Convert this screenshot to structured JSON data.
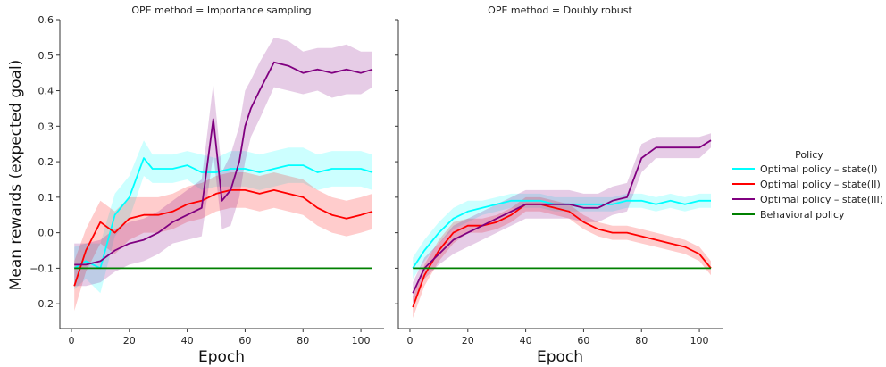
{
  "chart_data": {
    "type": "line",
    "ylabel": "Mean rewards (expected goal)",
    "xlabel": "Epoch",
    "xlim": [
      -4,
      108
    ],
    "ylim": [
      -0.27,
      0.6
    ],
    "xticks": [
      0,
      20,
      40,
      60,
      80,
      100
    ],
    "yticks": [
      -0.2,
      -0.1,
      0.0,
      0.1,
      0.2,
      0.3,
      0.4,
      0.5,
      0.6
    ],
    "ytick_labels": [
      "−0.2",
      "−0.1",
      "0.0",
      "0.1",
      "0.2",
      "0.3",
      "0.4",
      "0.5",
      "0.6"
    ],
    "legend": {
      "title": "Policy",
      "placement": "right",
      "entries": [
        "Optimal policy – state(I)",
        "Optimal policy – state(II)",
        "Optimal policy – state(III)",
        "Behavioral policy"
      ]
    },
    "colors": [
      "#00ffff",
      "#ff0000",
      "#800080",
      "#008000"
    ],
    "panels": [
      {
        "title": "OPE method = Importance sampling",
        "series": [
          {
            "name": "Optimal policy – state(I)",
            "x": [
              1,
              5,
              10,
              15,
              20,
              25,
              28,
              35,
              40,
              45,
              50,
              55,
              60,
              65,
              70,
              75,
              80,
              85,
              90,
              95,
              100,
              104
            ],
            "y": [
              -0.1,
              -0.08,
              -0.1,
              0.05,
              0.1,
              0.21,
              0.18,
              0.18,
              0.19,
              0.17,
              0.17,
              0.18,
              0.18,
              0.17,
              0.18,
              0.19,
              0.19,
              0.17,
              0.18,
              0.18,
              0.18,
              0.17
            ],
            "band": [
              0.06,
              0.05,
              0.07,
              0.06,
              0.06,
              0.05,
              0.04,
              0.04,
              0.04,
              0.05,
              0.04,
              0.05,
              0.05,
              0.05,
              0.05,
              0.05,
              0.05,
              0.05,
              0.05,
              0.05,
              0.05,
              0.05
            ]
          },
          {
            "name": "Optimal policy – state(II)",
            "x": [
              1,
              5,
              10,
              15,
              20,
              25,
              30,
              35,
              40,
              45,
              50,
              55,
              60,
              65,
              70,
              75,
              80,
              85,
              90,
              95,
              100,
              104
            ],
            "y": [
              -0.15,
              -0.05,
              0.03,
              0.0,
              0.04,
              0.05,
              0.05,
              0.06,
              0.08,
              0.09,
              0.11,
              0.12,
              0.12,
              0.11,
              0.12,
              0.11,
              0.1,
              0.07,
              0.05,
              0.04,
              0.05,
              0.06
            ],
            "band": [
              0.07,
              0.06,
              0.06,
              0.06,
              0.06,
              0.05,
              0.05,
              0.05,
              0.05,
              0.05,
              0.05,
              0.05,
              0.05,
              0.05,
              0.05,
              0.05,
              0.05,
              0.05,
              0.05,
              0.05,
              0.05,
              0.05
            ]
          },
          {
            "name": "Optimal policy – state(III)",
            "x": [
              1,
              5,
              10,
              15,
              20,
              25,
              30,
              35,
              40,
              45,
              49,
              52,
              55,
              58,
              60,
              62,
              65,
              70,
              75,
              80,
              85,
              90,
              95,
              100,
              104
            ],
            "y": [
              -0.09,
              -0.09,
              -0.08,
              -0.05,
              -0.03,
              -0.02,
              0.0,
              0.03,
              0.05,
              0.07,
              0.32,
              0.09,
              0.12,
              0.2,
              0.3,
              0.35,
              0.4,
              0.48,
              0.47,
              0.45,
              0.46,
              0.45,
              0.46,
              0.45,
              0.46
            ],
            "band": [
              0.06,
              0.06,
              0.06,
              0.06,
              0.06,
              0.06,
              0.06,
              0.06,
              0.07,
              0.08,
              0.1,
              0.08,
              0.1,
              0.1,
              0.1,
              0.08,
              0.08,
              0.07,
              0.07,
              0.06,
              0.06,
              0.07,
              0.07,
              0.06,
              0.05
            ]
          },
          {
            "name": "Behavioral policy",
            "x": [
              1,
              104
            ],
            "y": [
              -0.1,
              -0.1
            ],
            "band": [
              0,
              0
            ]
          }
        ]
      },
      {
        "title": "OPE method = Doubly robust",
        "series": [
          {
            "name": "Optimal policy – state(I)",
            "x": [
              1,
              5,
              10,
              15,
              20,
              25,
              30,
              35,
              40,
              45,
              50,
              55,
              60,
              65,
              70,
              75,
              80,
              85,
              90,
              95,
              100,
              104
            ],
            "y": [
              -0.1,
              -0.05,
              0.0,
              0.04,
              0.06,
              0.07,
              0.08,
              0.09,
              0.09,
              0.09,
              0.08,
              0.08,
              0.08,
              0.08,
              0.08,
              0.09,
              0.09,
              0.08,
              0.09,
              0.08,
              0.09,
              0.09
            ],
            "band": [
              0.03,
              0.03,
              0.03,
              0.03,
              0.03,
              0.02,
              0.02,
              0.02,
              0.02,
              0.02,
              0.02,
              0.02,
              0.02,
              0.02,
              0.02,
              0.02,
              0.02,
              0.02,
              0.02,
              0.02,
              0.02,
              0.02
            ]
          },
          {
            "name": "Optimal policy – state(II)",
            "x": [
              1,
              5,
              10,
              15,
              20,
              25,
              30,
              35,
              40,
              45,
              50,
              55,
              60,
              65,
              70,
              75,
              80,
              85,
              90,
              95,
              100,
              104
            ],
            "y": [
              -0.21,
              -0.12,
              -0.05,
              0.0,
              0.02,
              0.02,
              0.03,
              0.05,
              0.08,
              0.08,
              0.07,
              0.06,
              0.03,
              0.01,
              0.0,
              0.0,
              -0.01,
              -0.02,
              -0.03,
              -0.04,
              -0.06,
              -0.1
            ],
            "band": [
              0.03,
              0.03,
              0.03,
              0.03,
              0.02,
              0.02,
              0.02,
              0.02,
              0.02,
              0.02,
              0.02,
              0.02,
              0.02,
              0.02,
              0.02,
              0.02,
              0.02,
              0.02,
              0.02,
              0.02,
              0.02,
              0.02
            ]
          },
          {
            "name": "Optimal policy – state(III)",
            "x": [
              1,
              5,
              10,
              15,
              20,
              25,
              30,
              35,
              40,
              45,
              50,
              55,
              60,
              65,
              70,
              75,
              80,
              85,
              90,
              95,
              100,
              104
            ],
            "y": [
              -0.17,
              -0.1,
              -0.06,
              -0.02,
              0.0,
              0.02,
              0.04,
              0.06,
              0.08,
              0.08,
              0.08,
              0.08,
              0.07,
              0.07,
              0.09,
              0.1,
              0.21,
              0.24,
              0.24,
              0.24,
              0.24,
              0.26
            ],
            "band": [
              0.03,
              0.03,
              0.03,
              0.04,
              0.04,
              0.04,
              0.04,
              0.04,
              0.04,
              0.04,
              0.04,
              0.04,
              0.04,
              0.04,
              0.04,
              0.04,
              0.04,
              0.03,
              0.03,
              0.03,
              0.03,
              0.02
            ]
          },
          {
            "name": "Behavioral policy",
            "x": [
              1,
              104
            ],
            "y": [
              -0.1,
              -0.1
            ],
            "band": [
              0,
              0
            ]
          }
        ]
      }
    ]
  }
}
